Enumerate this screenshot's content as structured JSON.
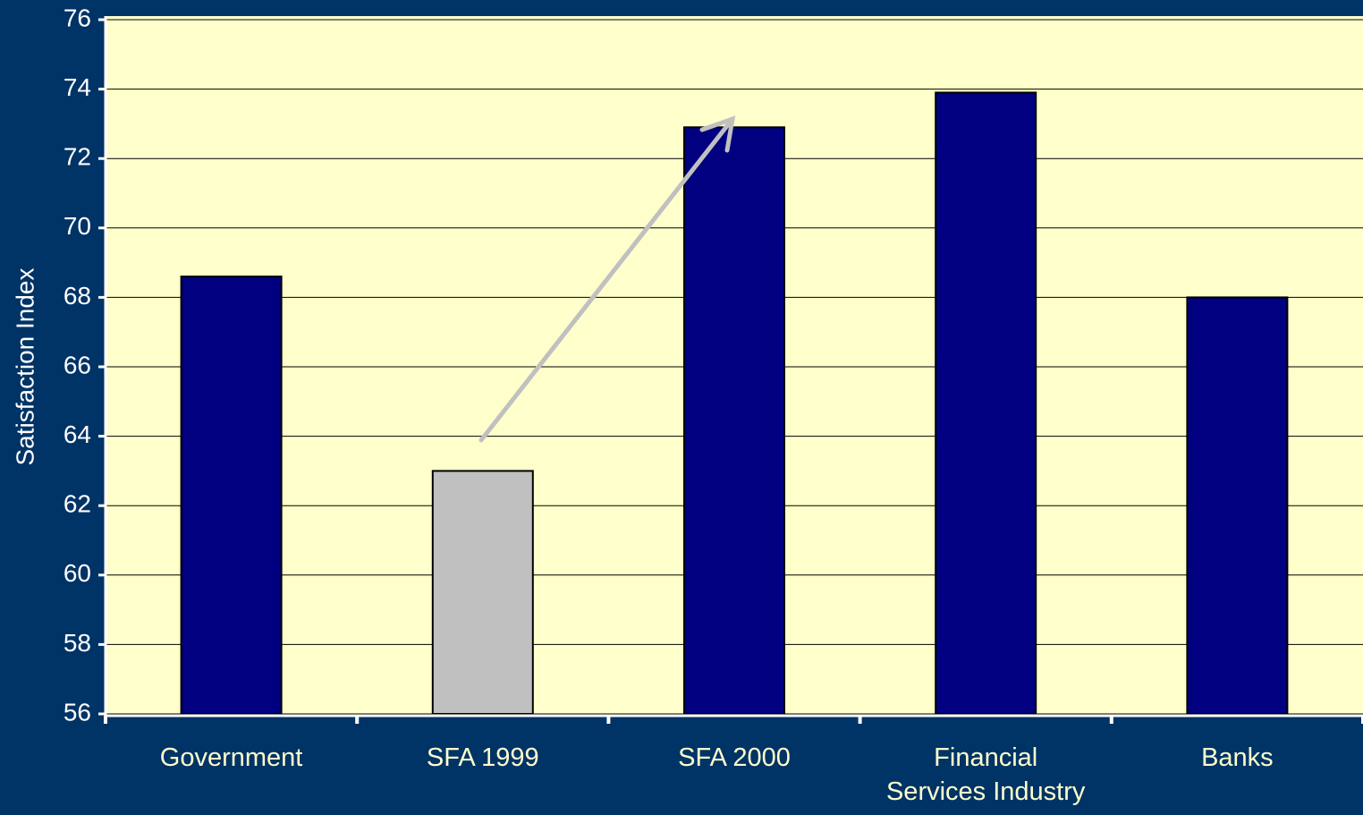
{
  "chart_data": {
    "type": "bar",
    "y_label": "Satisfaction Index",
    "categories": [
      "Government",
      "SFA 1999",
      "SFA 2000",
      "Financial\nServices Industry",
      "Banks"
    ],
    "values": [
      68.6,
      63,
      72.9,
      73.9,
      68
    ],
    "colors": [
      "#000080",
      "#c0c0c0",
      "#000080",
      "#000080",
      "#000080"
    ],
    "ylim": [
      56,
      76
    ],
    "yticks": [
      56,
      58,
      60,
      62,
      64,
      66,
      68,
      70,
      72,
      74,
      76
    ],
    "grid": true
  }
}
